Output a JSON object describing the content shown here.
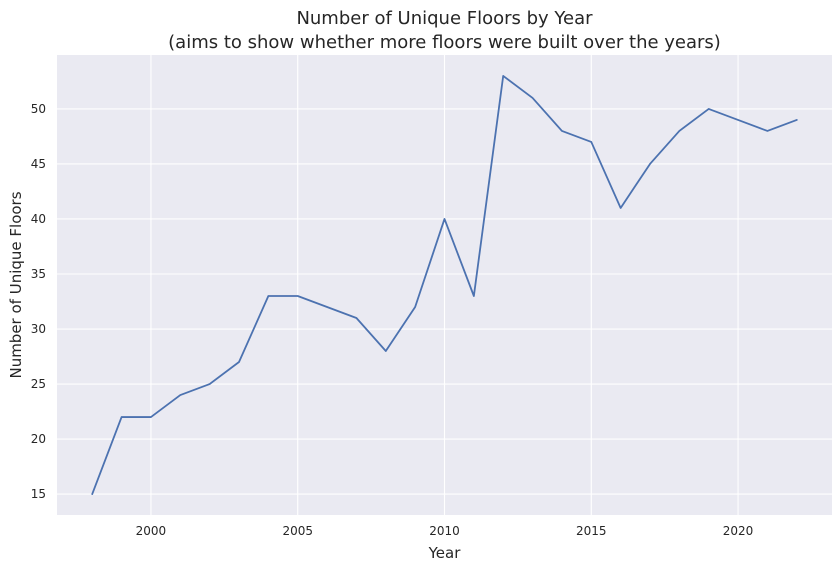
{
  "chart_data": {
    "type": "line",
    "title": "Number of Unique Floors by Year",
    "subtitle": "(aims to show whether more floors were built over the years)",
    "xlabel": "Year",
    "ylabel": "Number of Unique Floors",
    "x": [
      1998,
      1999,
      2000,
      2001,
      2002,
      2003,
      2004,
      2005,
      2006,
      2007,
      2008,
      2009,
      2010,
      2011,
      2012,
      2013,
      2014,
      2015,
      2016,
      2017,
      2018,
      2019,
      2020,
      2021,
      2022
    ],
    "series": [
      {
        "values": [
          15,
          22,
          22,
          24,
          25,
          27,
          33,
          33,
          32,
          31,
          28,
          32,
          40,
          33,
          53,
          51,
          48,
          47,
          41,
          45,
          48,
          50,
          49,
          48,
          49
        ]
      }
    ],
    "xticks": [
      2000,
      2005,
      2010,
      2015,
      2020
    ],
    "yticks": [
      15,
      20,
      25,
      30,
      35,
      40,
      45,
      50
    ],
    "xlim": [
      1996.8,
      2023.2
    ],
    "ylim": [
      13.1,
      54.9
    ],
    "grid": true,
    "line_color": "#4c72b0",
    "plot_background": "#eaeaf2"
  }
}
